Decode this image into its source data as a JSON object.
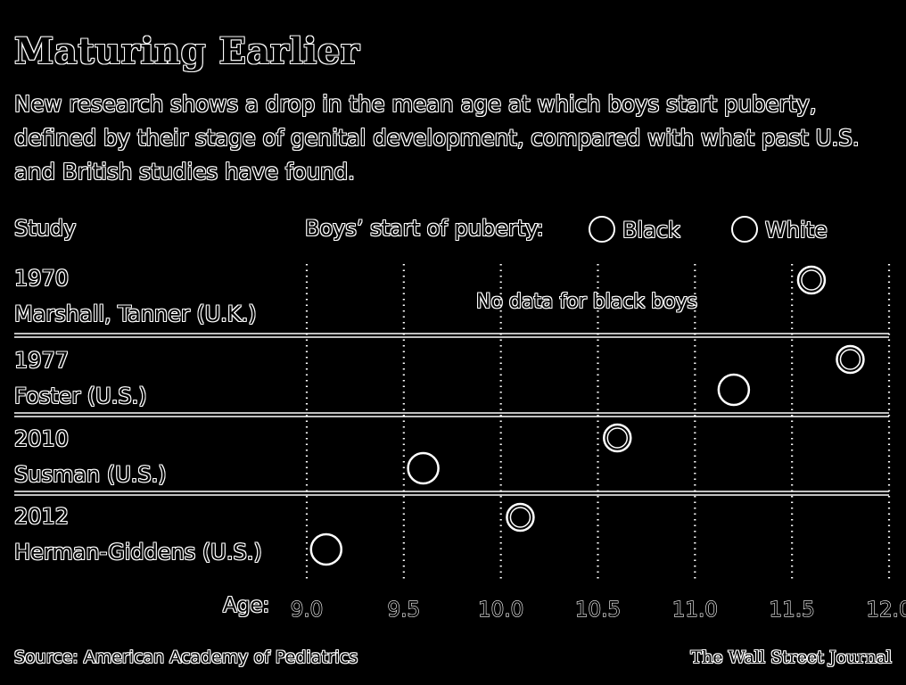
{
  "chart_data": {
    "type": "scatter",
    "title": "Maturing Earlier",
    "subtitle": "New research shows a drop in the mean age at which boys start puberty, defined by their stage of genital development, compared with what past U.S. and British studies have found.",
    "row_header": "Study",
    "legend_title": "Boys’ start of puberty:",
    "series_names": [
      "Black",
      "White"
    ],
    "xlabel": "Age:",
    "xlim": [
      9.0,
      12.0
    ],
    "x_ticks": [
      "9.0",
      "9.5",
      "10.0",
      "10.5",
      "11.0",
      "11.5",
      "12.0"
    ],
    "studies": [
      {
        "year": "1970",
        "name": "Marshall, Tanner (U.K.)",
        "white": 11.6,
        "black": null,
        "note": "No data for black boys"
      },
      {
        "year": "1977",
        "name": "Foster (U.S.)",
        "white": 11.8,
        "black": 11.2
      },
      {
        "year": "2010",
        "name": "Susman (U.S.)",
        "white": 10.6,
        "black": 9.6
      },
      {
        "year": "2012",
        "name": "Herman-Giddens (U.S.)",
        "white": 10.1,
        "black": 9.1
      }
    ],
    "grid": true,
    "legend_position": "top"
  },
  "footer": {
    "source": "Source: American Academy of Pediatrics",
    "credit": "The Wall Street Journal"
  }
}
